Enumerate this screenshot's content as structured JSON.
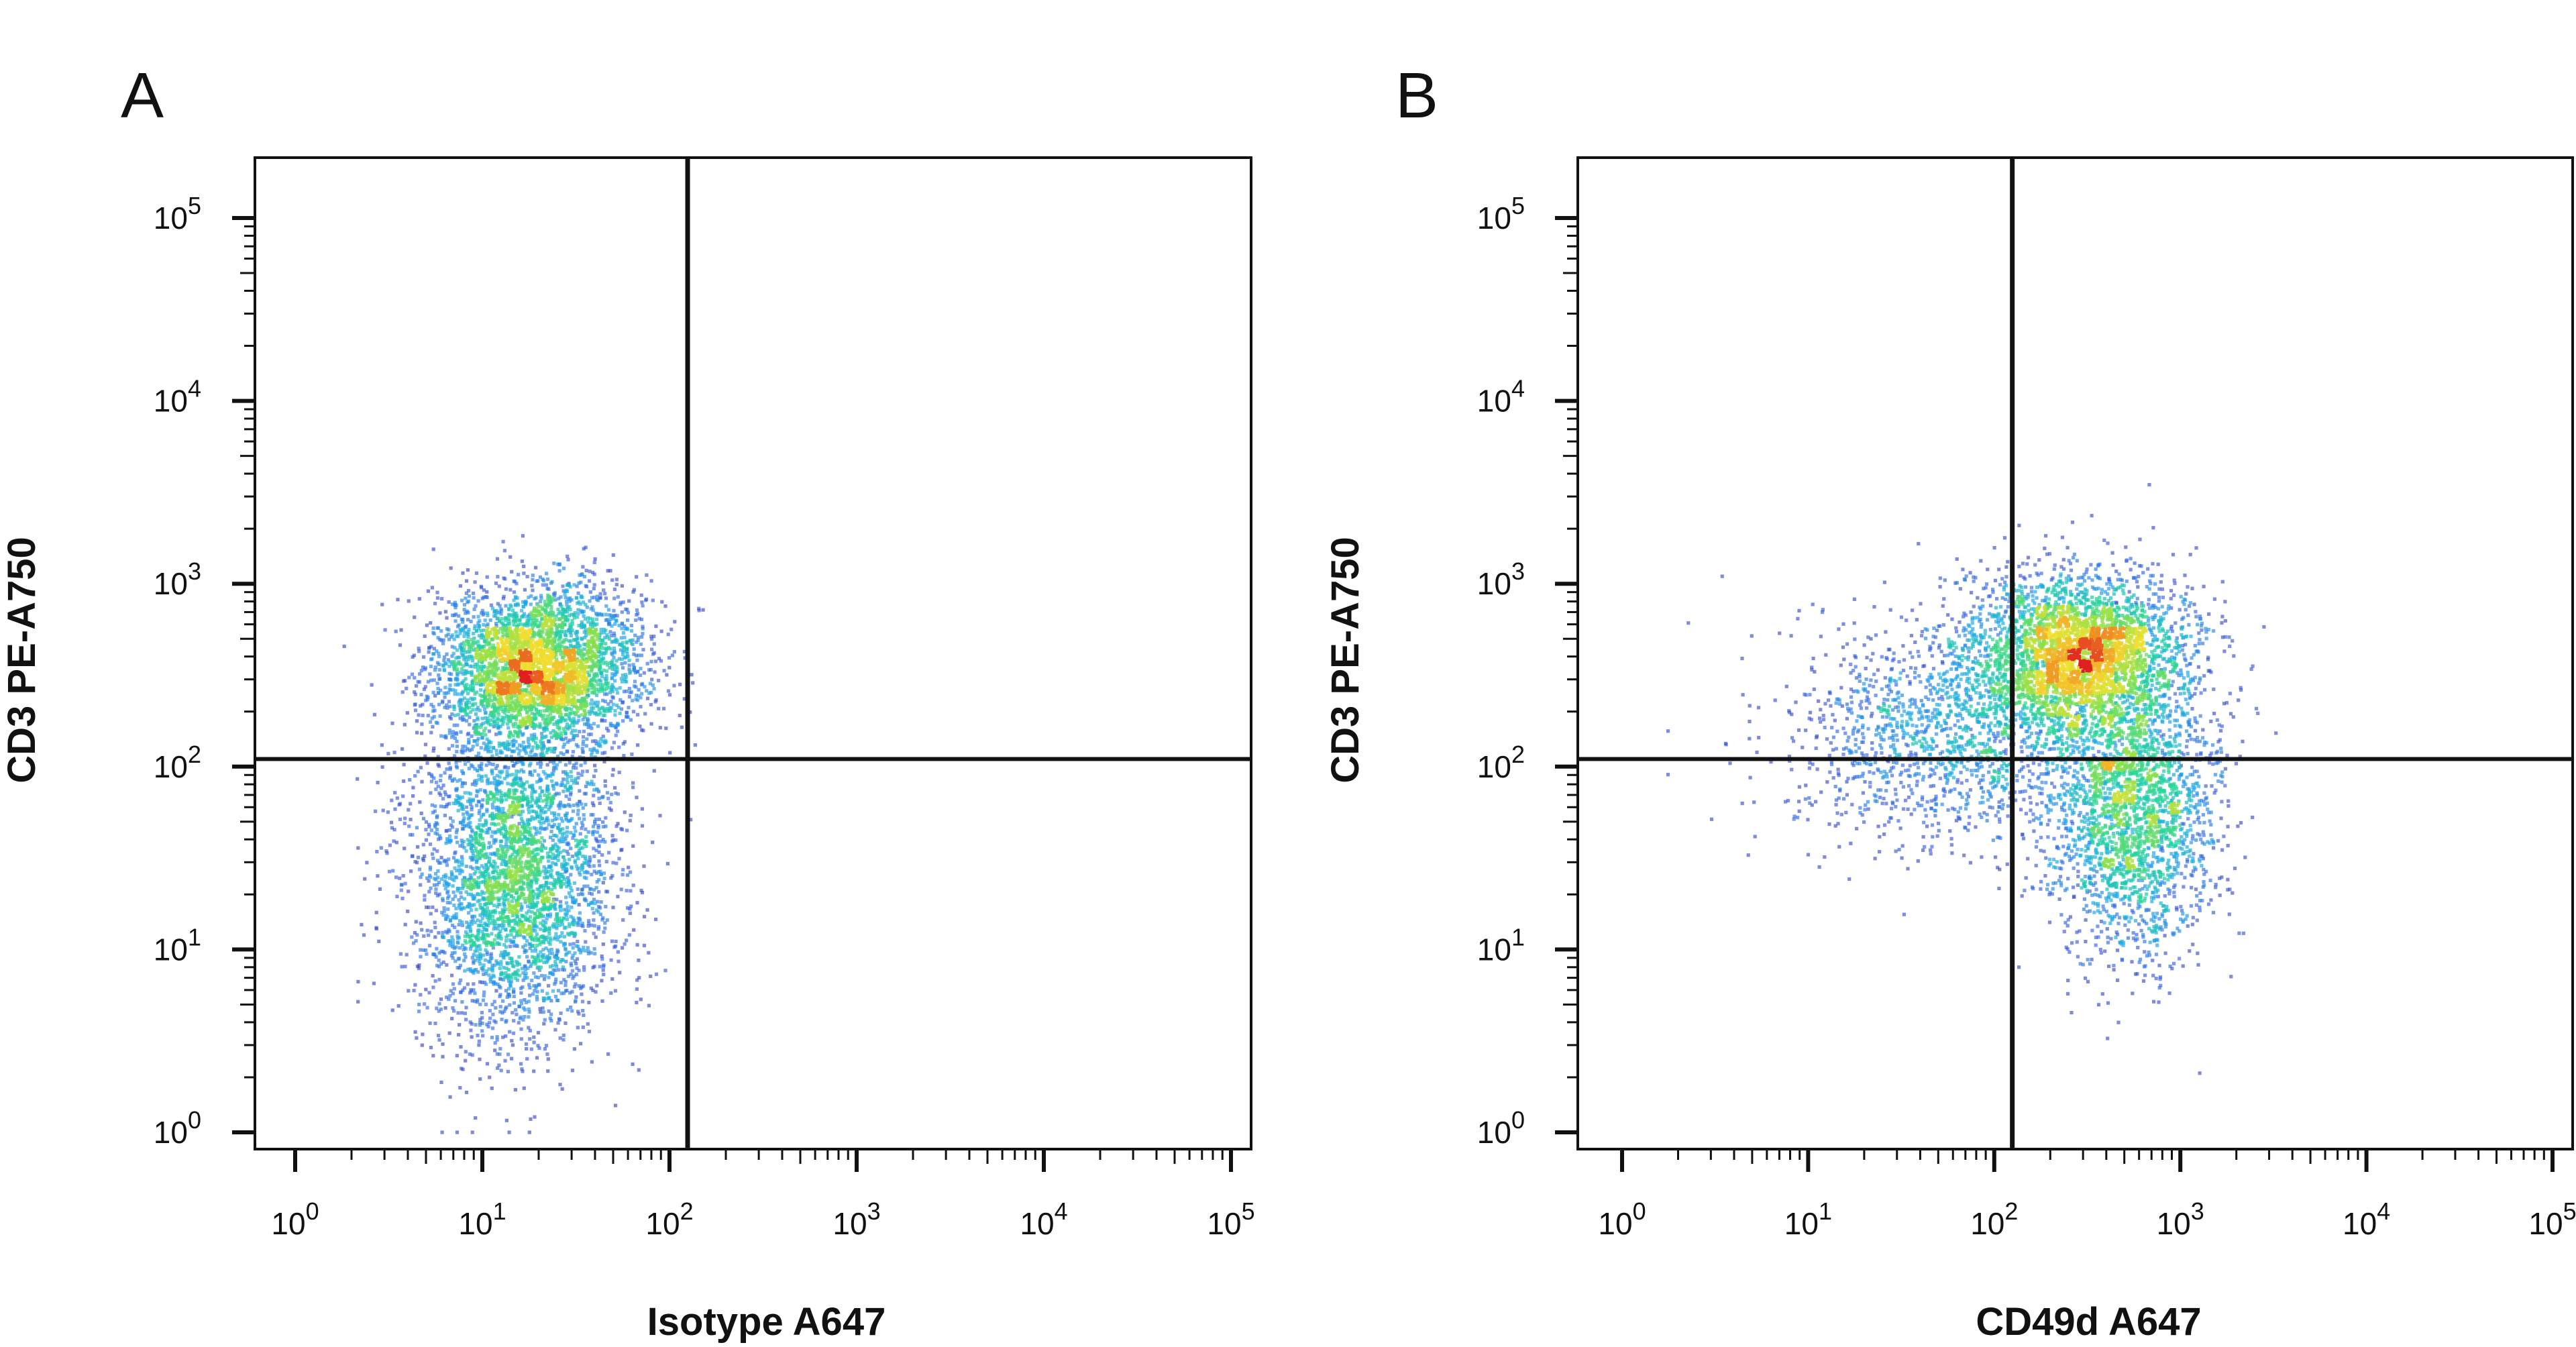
{
  "chart_data": [
    {
      "type": "scatter",
      "panel_label": "A",
      "xlabel": "Isotype A647",
      "ylabel": "CD3 PE-A750",
      "x_scale": "log",
      "y_scale": "log",
      "xlim": [
        1,
        100000
      ],
      "ylim": [
        1,
        100000
      ],
      "x_ticks": [
        {
          "value": 1,
          "base": "10",
          "exp": "0"
        },
        {
          "value": 10,
          "base": "10",
          "exp": "1"
        },
        {
          "value": 100,
          "base": "10",
          "exp": "2"
        },
        {
          "value": 1000,
          "base": "10",
          "exp": "3"
        },
        {
          "value": 10000,
          "base": "10",
          "exp": "4"
        },
        {
          "value": 100000,
          "base": "10",
          "exp": "5"
        }
      ],
      "y_ticks": [
        {
          "value": 1,
          "base": "10",
          "exp": "0"
        },
        {
          "value": 10,
          "base": "10",
          "exp": "1"
        },
        {
          "value": 100,
          "base": "10",
          "exp": "2"
        },
        {
          "value": 1000,
          "base": "10",
          "exp": "3"
        },
        {
          "value": 10000,
          "base": "10",
          "exp": "4"
        },
        {
          "value": 100000,
          "base": "10",
          "exp": "5"
        }
      ],
      "quadrant_gate": {
        "x": 125,
        "y": 110
      },
      "populations": [
        {
          "center_x": 20,
          "center_y": 350,
          "sigma_x_log10": 0.28,
          "sigma_y_log10": 0.22,
          "fraction": 0.5
        },
        {
          "center_x": 15,
          "center_y": 25,
          "sigma_x_log10": 0.27,
          "sigma_y_log10": 0.45,
          "fraction": 0.5
        }
      ],
      "event_count": 7000,
      "density_colormap": [
        "#1a1a9c",
        "#2e5ae0",
        "#1fa8e8",
        "#22d3a0",
        "#8be04a",
        "#f0e030",
        "#f08a20",
        "#e02020"
      ],
      "grid": false
    },
    {
      "type": "scatter",
      "panel_label": "B",
      "xlabel": "CD49d A647",
      "ylabel": "CD3 PE-A750",
      "x_scale": "log",
      "y_scale": "log",
      "xlim": [
        1,
        100000
      ],
      "ylim": [
        1,
        100000
      ],
      "x_ticks": [
        {
          "value": 1,
          "base": "10",
          "exp": "0"
        },
        {
          "value": 10,
          "base": "10",
          "exp": "1"
        },
        {
          "value": 100,
          "base": "10",
          "exp": "2"
        },
        {
          "value": 1000,
          "base": "10",
          "exp": "3"
        },
        {
          "value": 10000,
          "base": "10",
          "exp": "4"
        },
        {
          "value": 100000,
          "base": "10",
          "exp": "5"
        }
      ],
      "y_ticks": [
        {
          "value": 1,
          "base": "10",
          "exp": "0"
        },
        {
          "value": 10,
          "base": "10",
          "exp": "1"
        },
        {
          "value": 100,
          "base": "10",
          "exp": "2"
        },
        {
          "value": 1000,
          "base": "10",
          "exp": "3"
        },
        {
          "value": 10000,
          "base": "10",
          "exp": "4"
        },
        {
          "value": 100000,
          "base": "10",
          "exp": "5"
        }
      ],
      "quadrant_gate": {
        "x": 125,
        "y": 110
      },
      "populations": [
        {
          "center_x": 280,
          "center_y": 420,
          "sigma_x_log10": 0.3,
          "sigma_y_log10": 0.22,
          "fraction": 0.45
        },
        {
          "center_x": 550,
          "center_y": 55,
          "sigma_x_log10": 0.22,
          "sigma_y_log10": 0.38,
          "fraction": 0.33
        },
        {
          "center_x": 60,
          "center_y": 150,
          "sigma_x_log10": 0.45,
          "sigma_y_log10": 0.3,
          "fraction": 0.22
        }
      ],
      "event_count": 7000,
      "density_colormap": [
        "#1a1a9c",
        "#2e5ae0",
        "#1fa8e8",
        "#22d3a0",
        "#8be04a",
        "#f0e030",
        "#f08a20",
        "#e02020"
      ],
      "grid": false
    }
  ]
}
